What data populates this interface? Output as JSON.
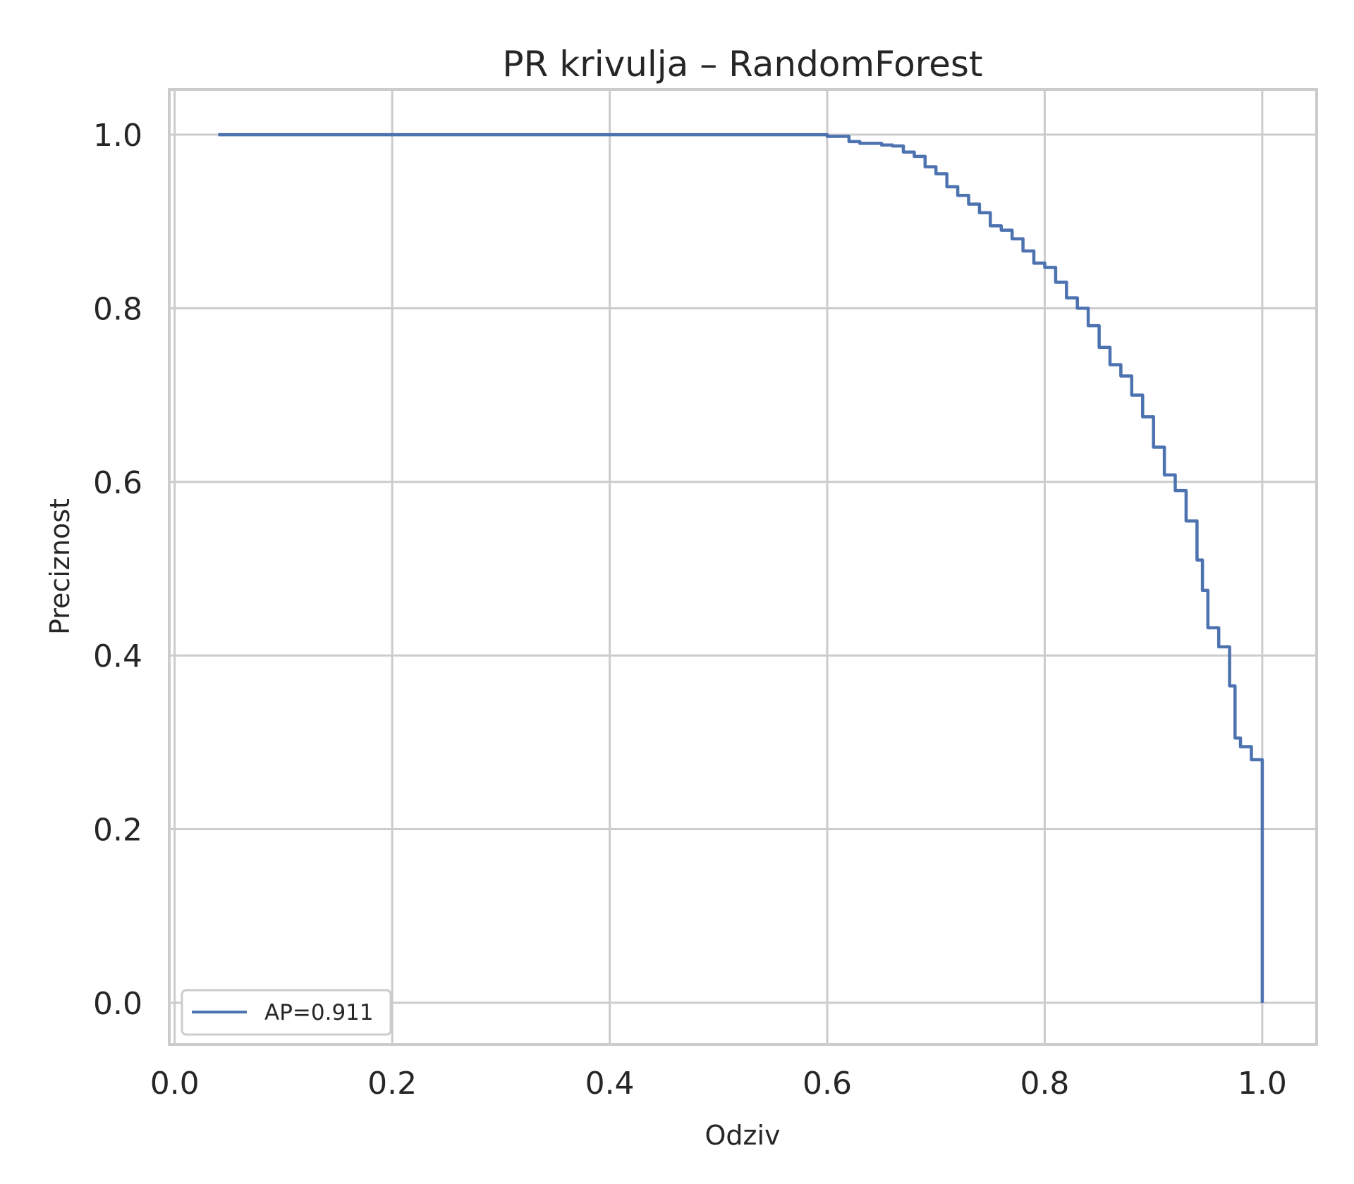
{
  "chart_data": {
    "type": "line",
    "title": "PR krivulja – RandomForest",
    "xlabel": "Odziv",
    "ylabel": "Preciznost",
    "xlim": [
      -0.005,
      1.05
    ],
    "ylim": [
      -0.048,
      1.052
    ],
    "xticks": [
      "0.0",
      "0.2",
      "0.4",
      "0.6",
      "0.8",
      "1.0"
    ],
    "yticks": [
      "0.0",
      "0.2",
      "0.4",
      "0.6",
      "0.8",
      "1.0"
    ],
    "grid": true,
    "legend_position": "lower-left",
    "colors": {
      "line": "#4c72b0",
      "grid": "#cccccc",
      "text": "#262626"
    },
    "series": [
      {
        "name": "AP=0.911",
        "x": [
          0.04,
          0.5,
          0.5,
          0.59,
          0.6,
          0.62,
          0.63,
          0.65,
          0.66,
          0.67,
          0.68,
          0.69,
          0.7,
          0.71,
          0.72,
          0.73,
          0.74,
          0.75,
          0.76,
          0.77,
          0.78,
          0.79,
          0.8,
          0.81,
          0.82,
          0.83,
          0.84,
          0.85,
          0.86,
          0.87,
          0.88,
          0.89,
          0.9,
          0.91,
          0.92,
          0.93,
          0.94,
          0.945,
          0.95,
          0.96,
          0.97,
          0.975,
          0.98,
          0.99,
          1.0,
          1.0
        ],
        "y": [
          1.0,
          1.0,
          1.0,
          1.0,
          0.998,
          0.992,
          0.99,
          0.988,
          0.987,
          0.98,
          0.975,
          0.963,
          0.955,
          0.94,
          0.93,
          0.92,
          0.91,
          0.895,
          0.89,
          0.88,
          0.866,
          0.852,
          0.847,
          0.83,
          0.812,
          0.8,
          0.78,
          0.755,
          0.735,
          0.722,
          0.7,
          0.675,
          0.64,
          0.608,
          0.59,
          0.555,
          0.51,
          0.475,
          0.432,
          0.41,
          0.365,
          0.305,
          0.295,
          0.28,
          0.278,
          0.0
        ]
      }
    ]
  }
}
